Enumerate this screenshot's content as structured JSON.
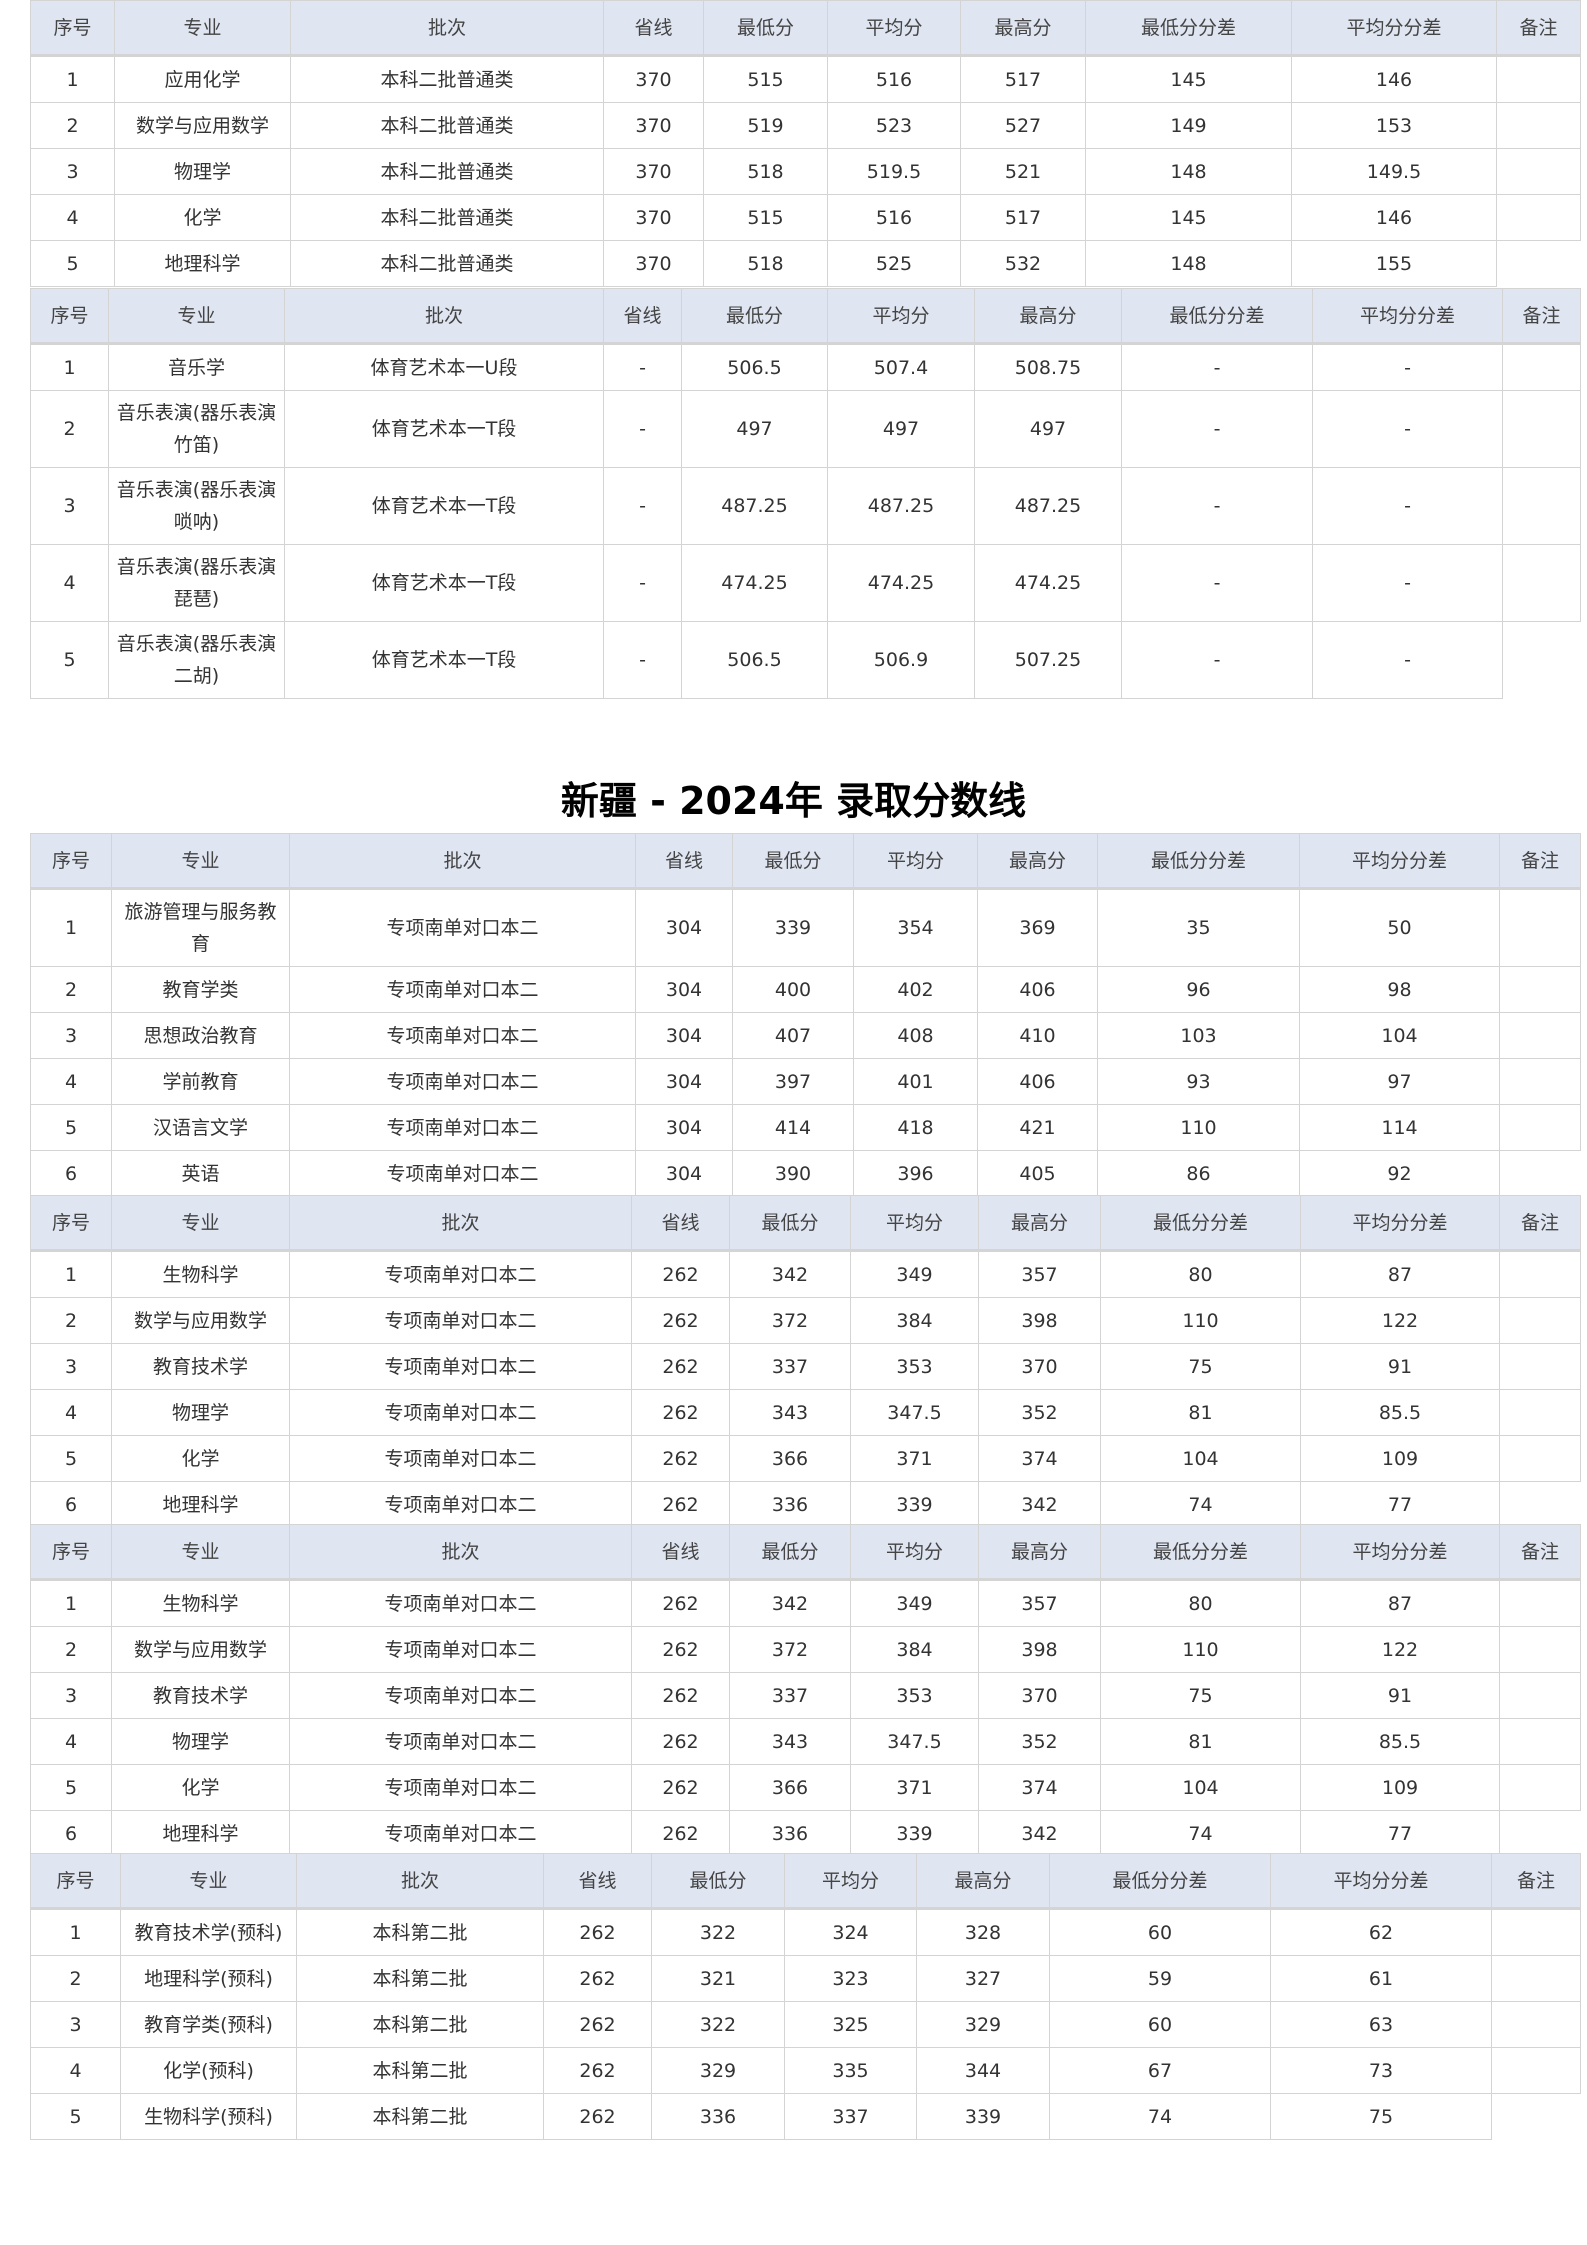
{
  "headers": [
    "序号",
    "专业",
    "批次",
    "省线",
    "最低分",
    "平均分",
    "最高分",
    "最低分分差",
    "平均分分差",
    "备注"
  ],
  "title": "新疆 - 2024年 录取分数线",
  "tables": [
    {
      "rows": [
        [
          "1",
          "应用化学",
          "本科二批普通类",
          "370",
          "515",
          "516",
          "517",
          "145",
          "146",
          ""
        ],
        [
          "2",
          "数学与应用数学",
          "本科二批普通类",
          "370",
          "519",
          "523",
          "527",
          "149",
          "153",
          ""
        ],
        [
          "3",
          "物理学",
          "本科二批普通类",
          "370",
          "518",
          "519.5",
          "521",
          "148",
          "149.5",
          ""
        ],
        [
          "4",
          "化学",
          "本科二批普通类",
          "370",
          "515",
          "516",
          "517",
          "145",
          "146",
          ""
        ],
        [
          "5",
          "地理科学",
          "本科二批普通类",
          "370",
          "518",
          "525",
          "532",
          "148",
          "155",
          ""
        ]
      ]
    },
    {
      "rows": [
        [
          "1",
          "音乐学",
          "体育艺术本一U段",
          "-",
          "506.5",
          "507.4",
          "508.75",
          "-",
          "-",
          ""
        ],
        [
          "2",
          "音乐表演(器乐表演竹笛)",
          "体育艺术本一T段",
          "-",
          "497",
          "497",
          "497",
          "-",
          "-",
          ""
        ],
        [
          "3",
          "音乐表演(器乐表演唢呐)",
          "体育艺术本一T段",
          "-",
          "487.25",
          "487.25",
          "487.25",
          "-",
          "-",
          ""
        ],
        [
          "4",
          "音乐表演(器乐表演琵琶)",
          "体育艺术本一T段",
          "-",
          "474.25",
          "474.25",
          "474.25",
          "-",
          "-",
          ""
        ],
        [
          "5",
          "音乐表演(器乐表演二胡)",
          "体育艺术本一T段",
          "-",
          "506.5",
          "506.9",
          "507.25",
          "-",
          "-",
          ""
        ]
      ]
    },
    {
      "rows": [
        [
          "1",
          "旅游管理与服务教育",
          "专项南单对口本二",
          "304",
          "339",
          "354",
          "369",
          "35",
          "50",
          ""
        ],
        [
          "2",
          "教育学类",
          "专项南单对口本二",
          "304",
          "400",
          "402",
          "406",
          "96",
          "98",
          ""
        ],
        [
          "3",
          "思想政治教育",
          "专项南单对口本二",
          "304",
          "407",
          "408",
          "410",
          "103",
          "104",
          ""
        ],
        [
          "4",
          "学前教育",
          "专项南单对口本二",
          "304",
          "397",
          "401",
          "406",
          "93",
          "97",
          ""
        ],
        [
          "5",
          "汉语言文学",
          "专项南单对口本二",
          "304",
          "414",
          "418",
          "421",
          "110",
          "114",
          ""
        ],
        [
          "6",
          "英语",
          "专项南单对口本二",
          "304",
          "390",
          "396",
          "405",
          "86",
          "92",
          ""
        ]
      ]
    },
    {
      "rows": [
        [
          "1",
          "生物科学",
          "专项南单对口本二",
          "262",
          "342",
          "349",
          "357",
          "80",
          "87",
          ""
        ],
        [
          "2",
          "数学与应用数学",
          "专项南单对口本二",
          "262",
          "372",
          "384",
          "398",
          "110",
          "122",
          ""
        ],
        [
          "3",
          "教育技术学",
          "专项南单对口本二",
          "262",
          "337",
          "353",
          "370",
          "75",
          "91",
          ""
        ],
        [
          "4",
          "物理学",
          "专项南单对口本二",
          "262",
          "343",
          "347.5",
          "352",
          "81",
          "85.5",
          ""
        ],
        [
          "5",
          "化学",
          "专项南单对口本二",
          "262",
          "366",
          "371",
          "374",
          "104",
          "109",
          ""
        ],
        [
          "6",
          "地理科学",
          "专项南单对口本二",
          "262",
          "336",
          "339",
          "342",
          "74",
          "77",
          ""
        ]
      ]
    },
    {
      "rows": [
        [
          "1",
          "生物科学",
          "专项南单对口本二",
          "262",
          "342",
          "349",
          "357",
          "80",
          "87",
          ""
        ],
        [
          "2",
          "数学与应用数学",
          "专项南单对口本二",
          "262",
          "372",
          "384",
          "398",
          "110",
          "122",
          ""
        ],
        [
          "3",
          "教育技术学",
          "专项南单对口本二",
          "262",
          "337",
          "353",
          "370",
          "75",
          "91",
          ""
        ],
        [
          "4",
          "物理学",
          "专项南单对口本二",
          "262",
          "343",
          "347.5",
          "352",
          "81",
          "85.5",
          ""
        ],
        [
          "5",
          "化学",
          "专项南单对口本二",
          "262",
          "366",
          "371",
          "374",
          "104",
          "109",
          ""
        ],
        [
          "6",
          "地理科学",
          "专项南单对口本二",
          "262",
          "336",
          "339",
          "342",
          "74",
          "77",
          ""
        ]
      ]
    },
    {
      "rows": [
        [
          "1",
          "教育技术学(预科)",
          "本科第二批",
          "262",
          "322",
          "324",
          "328",
          "60",
          "62",
          ""
        ],
        [
          "2",
          "地理科学(预科)",
          "本科第二批",
          "262",
          "321",
          "323",
          "327",
          "59",
          "61",
          ""
        ],
        [
          "3",
          "教育学类(预科)",
          "本科第二批",
          "262",
          "322",
          "325",
          "329",
          "60",
          "63",
          ""
        ],
        [
          "4",
          "化学(预科)",
          "本科第二批",
          "262",
          "329",
          "335",
          "344",
          "67",
          "73",
          ""
        ],
        [
          "5",
          "生物科学(预科)",
          "本科第二批",
          "262",
          "336",
          "337",
          "339",
          "74",
          "75",
          ""
        ]
      ]
    }
  ]
}
